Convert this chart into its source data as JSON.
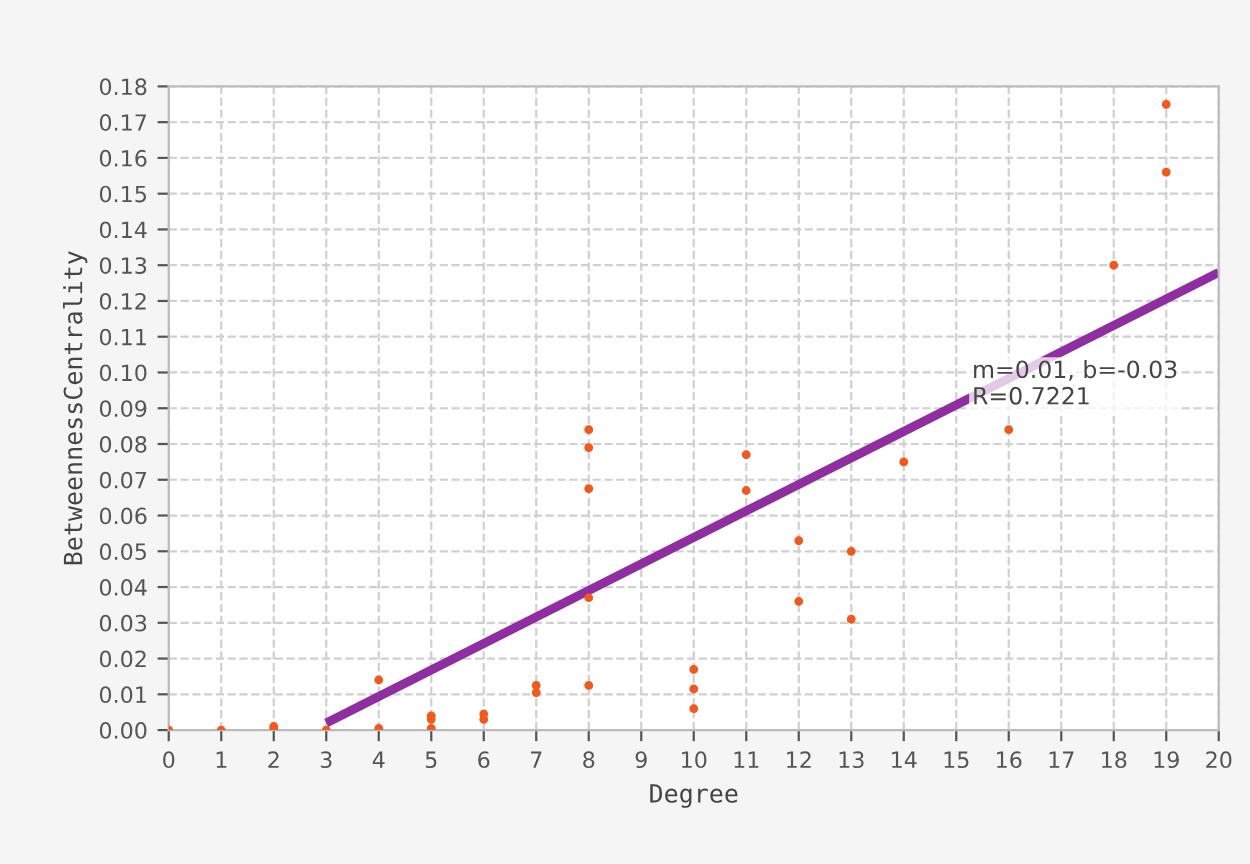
{
  "chart_data": {
    "type": "scatter",
    "xlabel": "Degree",
    "ylabel": "BetweennessCentrality",
    "series": [
      {
        "color": "#f05a1e",
        "marker": "circle",
        "x": [
          0,
          1,
          2,
          2,
          3,
          4,
          4,
          5,
          5,
          5,
          6,
          6,
          7,
          7,
          8,
          8,
          8,
          8,
          8,
          10,
          10,
          10,
          11,
          11,
          12,
          12,
          13,
          13,
          14,
          16,
          18,
          19,
          19
        ],
        "values": [
          0,
          0,
          0.001,
          0.0005,
          0,
          0.014,
          0.0005,
          0.004,
          0.003,
          0.0005,
          0.0045,
          0.003,
          0.0125,
          0.0105,
          0.084,
          0.079,
          0.0675,
          0.037,
          0.0125,
          0.017,
          0.0115,
          0.006,
          0.077,
          0.067,
          0.053,
          0.036,
          0.05,
          0.031,
          0.075,
          0.084,
          0.13,
          0.175,
          0.156
        ]
      },
      {
        "type": "line",
        "color": "#8e2ea0",
        "marker": "none",
        "line_style": "solid",
        "x": [
          3,
          20
        ],
        "values": [
          0.002,
          0.128
        ]
      }
    ],
    "annotations": [
      "m=0.01, b=-0.03\nR=0.7221"
    ],
    "xlim": [
      0,
      20
    ],
    "xticks": [
      0,
      1,
      2,
      3,
      4,
      5,
      6,
      7,
      8,
      9,
      10,
      11,
      12,
      13,
      14,
      15,
      16,
      17,
      18,
      19,
      20
    ],
    "ylim": [
      0,
      0.18
    ],
    "yticks": [
      {
        "value": 0,
        "label": "0.00"
      },
      {
        "value": 0.01,
        "label": "0.01"
      },
      {
        "value": 0.02,
        "label": "0.02"
      },
      {
        "value": 0.03,
        "label": "0.03"
      },
      {
        "value": 0.04,
        "label": "0.04"
      },
      {
        "value": 0.05,
        "label": "0.05"
      },
      {
        "value": 0.06,
        "label": "0.06"
      },
      {
        "value": 0.07,
        "label": "0.07"
      },
      {
        "value": 0.08,
        "label": "0.08"
      },
      {
        "value": 0.09,
        "label": "0.09"
      },
      {
        "value": 0.1,
        "label": "0.10"
      },
      {
        "value": 0.11,
        "label": "0.11"
      },
      {
        "value": 0.12,
        "label": "0.12"
      },
      {
        "value": 0.13,
        "label": "0.13"
      },
      {
        "value": 0.14,
        "label": "0.14"
      },
      {
        "value": 0.15,
        "label": "0.15"
      },
      {
        "value": 0.16,
        "label": "0.16"
      },
      {
        "value": 0.17,
        "label": "0.17"
      },
      {
        "value": 0.18,
        "label": "0.18"
      }
    ],
    "grid": true,
    "legend": false
  }
}
